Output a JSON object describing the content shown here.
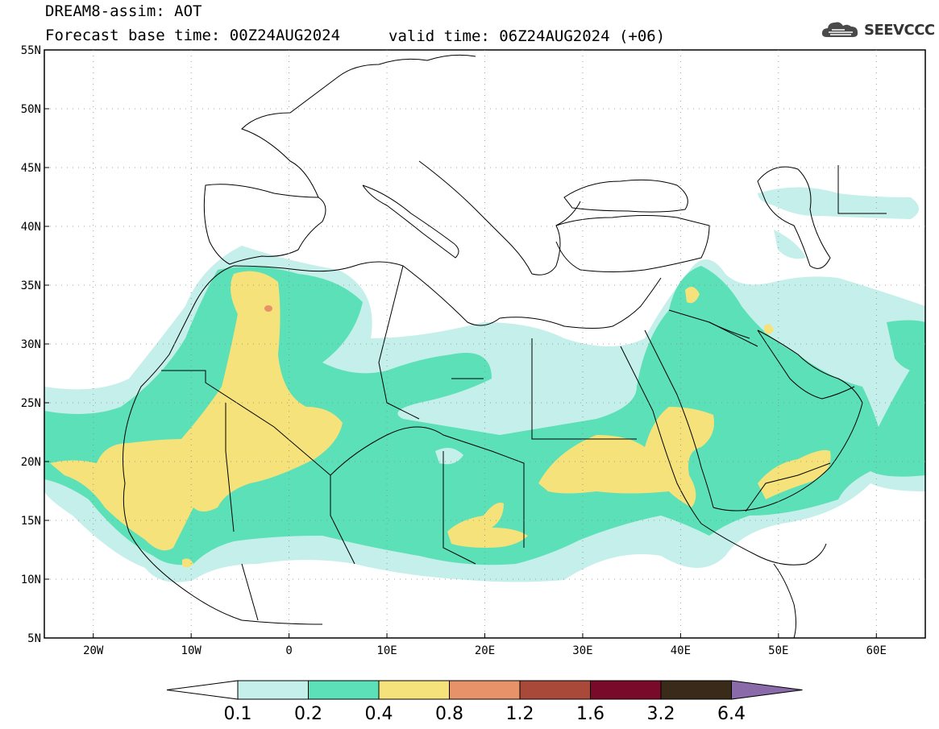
{
  "header": {
    "title": "DREAM8-assim: AOT",
    "base_time": "Forecast base time: 00Z24AUG2024",
    "valid_time": "valid time: 06Z24AUG2024 (+06)",
    "logo_text": "SEEVCCC",
    "logo_icon": "cloud-icon"
  },
  "map": {
    "lat_range": [
      5,
      55
    ],
    "lon_range": [
      -25,
      65
    ],
    "lat_ticks": [
      "55N",
      "50N",
      "45N",
      "40N",
      "35N",
      "30N",
      "25N",
      "20N",
      "15N",
      "10N",
      "5N"
    ],
    "lon_ticks": [
      "20W",
      "10W",
      "0",
      "10E",
      "20E",
      "30E",
      "40E",
      "50E",
      "60E"
    ]
  },
  "colorbar": {
    "labels": [
      "0.1",
      "0.2",
      "0.4",
      "0.8",
      "1.2",
      "1.6",
      "3.2",
      "6.4"
    ],
    "colors": [
      "#ffffff",
      "#c4efea",
      "#5ce0b8",
      "#f5e27a",
      "#e8926a",
      "#a8493a",
      "#7a0a2a",
      "#3a2a1a",
      "#8a6aa8"
    ]
  }
}
